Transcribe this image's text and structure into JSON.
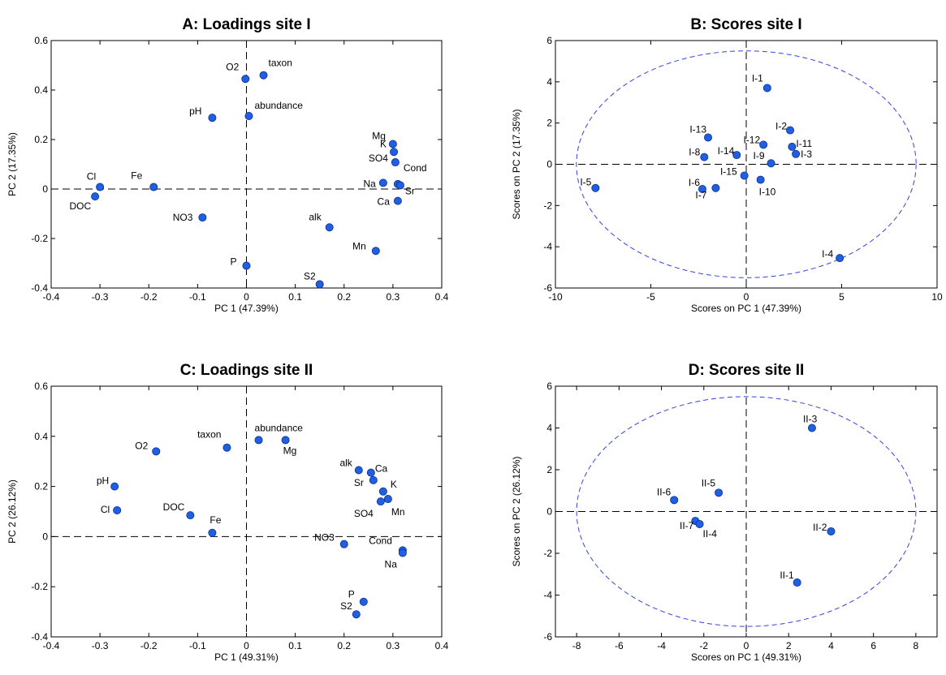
{
  "chart_data": [
    {
      "type": "scatter",
      "title": "A: Loadings site I",
      "xlabel": "PC 1 (47.39%)",
      "ylabel": "PC 2 (17.35%)",
      "xlim": [
        -0.4,
        0.4
      ],
      "ylim": [
        -0.4,
        0.6
      ],
      "xticks": [
        -0.4,
        -0.3,
        -0.2,
        -0.1,
        0,
        0.1,
        0.2,
        0.3,
        0.4
      ],
      "yticks": [
        -0.4,
        -0.2,
        0,
        0.2,
        0.4,
        0.6
      ],
      "points": [
        {
          "label": "O2",
          "x": -0.002,
          "y": 0.445
        },
        {
          "label": "taxon",
          "x": 0.035,
          "y": 0.46
        },
        {
          "label": "abundance",
          "x": 0.005,
          "y": 0.295
        },
        {
          "label": "pH",
          "x": -0.07,
          "y": 0.288
        },
        {
          "label": "Mg",
          "x": 0.3,
          "y": 0.182
        },
        {
          "label": "K",
          "x": 0.302,
          "y": 0.15
        },
        {
          "label": "SO4",
          "x": 0.305,
          "y": 0.108
        },
        {
          "label": "Cond",
          "x": 0.31,
          "y": 0.02
        },
        {
          "label": "Na",
          "x": 0.28,
          "y": 0.025
        },
        {
          "label": "Sr",
          "x": 0.315,
          "y": 0.015
        },
        {
          "label": "Ca",
          "x": 0.31,
          "y": -0.048
        },
        {
          "label": "Cl",
          "x": -0.3,
          "y": 0.008
        },
        {
          "label": "Fe",
          "x": -0.19,
          "y": 0.008
        },
        {
          "label": "DOC",
          "x": -0.31,
          "y": -0.03
        },
        {
          "label": "NO3",
          "x": -0.09,
          "y": -0.115
        },
        {
          "label": "alk",
          "x": 0.17,
          "y": -0.155
        },
        {
          "label": "Mn",
          "x": 0.265,
          "y": -0.25
        },
        {
          "label": "P",
          "x": 0.0,
          "y": -0.31
        },
        {
          "label": "S2",
          "x": 0.15,
          "y": -0.385
        }
      ]
    },
    {
      "type": "scatter",
      "title": "B: Scores site I",
      "xlabel": "Scores on PC 1 (47.39%)",
      "ylabel": "Scores on PC 2 (17.35%)",
      "xlim": [
        -10,
        10
      ],
      "ylim": [
        -6,
        6
      ],
      "xticks": [
        -10,
        -5,
        0,
        5,
        10
      ],
      "yticks": [
        -6,
        -4,
        -2,
        0,
        2,
        4,
        6
      ],
      "ellipse": {
        "rx": 8.9,
        "ry": 5.5
      },
      "points": [
        {
          "label": "I-1",
          "x": 1.1,
          "y": 3.7
        },
        {
          "label": "I-2",
          "x": 2.3,
          "y": 1.65
        },
        {
          "label": "I-11",
          "x": 2.4,
          "y": 0.85
        },
        {
          "label": "I-3",
          "x": 2.6,
          "y": 0.5
        },
        {
          "label": "I-12",
          "x": 0.9,
          "y": 0.95
        },
        {
          "label": "I-13",
          "x": -2.0,
          "y": 1.3
        },
        {
          "label": "I-14",
          "x": -0.5,
          "y": 0.45
        },
        {
          "label": "I-8",
          "x": -2.2,
          "y": 0.35
        },
        {
          "label": "I-9",
          "x": 1.3,
          "y": 0.05
        },
        {
          "label": "I-15",
          "x": -0.1,
          "y": -0.55
        },
        {
          "label": "I-10",
          "x": 0.75,
          "y": -0.75
        },
        {
          "label": "I-6",
          "x": -2.3,
          "y": -1.2
        },
        {
          "label": "I-7",
          "x": -1.6,
          "y": -1.15
        },
        {
          "label": "I-5",
          "x": -7.9,
          "y": -1.15
        },
        {
          "label": "I-4",
          "x": 4.9,
          "y": -4.55
        }
      ]
    },
    {
      "type": "scatter",
      "title": "C: Loadings site II",
      "xlabel": "PC 1 (49.31%)",
      "ylabel": "PC 2 (26.12%)",
      "xlim": [
        -0.4,
        0.4
      ],
      "ylim": [
        -0.4,
        0.6
      ],
      "xticks": [
        -0.4,
        -0.3,
        -0.2,
        -0.1,
        0,
        0.1,
        0.2,
        0.3,
        0.4
      ],
      "yticks": [
        -0.4,
        -0.2,
        0,
        0.2,
        0.4,
        0.6
      ],
      "points": [
        {
          "label": "abundance",
          "x": 0.025,
          "y": 0.385
        },
        {
          "label": "Mg",
          "x": 0.08,
          "y": 0.385
        },
        {
          "label": "taxon",
          "x": -0.04,
          "y": 0.355
        },
        {
          "label": "O2",
          "x": -0.185,
          "y": 0.34
        },
        {
          "label": "alk",
          "x": 0.23,
          "y": 0.265
        },
        {
          "label": "Ca",
          "x": 0.255,
          "y": 0.255
        },
        {
          "label": "pH",
          "x": -0.27,
          "y": 0.2
        },
        {
          "label": "Sr",
          "x": 0.26,
          "y": 0.225
        },
        {
          "label": "K",
          "x": 0.28,
          "y": 0.18
        },
        {
          "label": "Cl",
          "x": -0.265,
          "y": 0.105
        },
        {
          "label": "DOC",
          "x": -0.115,
          "y": 0.085
        },
        {
          "label": "SO4",
          "x": 0.275,
          "y": 0.14
        },
        {
          "label": "Mn",
          "x": 0.29,
          "y": 0.15
        },
        {
          "label": "Fe",
          "x": -0.07,
          "y": 0.015
        },
        {
          "label": "NO3",
          "x": 0.2,
          "y": -0.03
        },
        {
          "label": "Cond",
          "x": 0.32,
          "y": -0.055
        },
        {
          "label": "Na",
          "x": 0.32,
          "y": -0.065
        },
        {
          "label": "P",
          "x": 0.24,
          "y": -0.26
        },
        {
          "label": "S2",
          "x": 0.225,
          "y": -0.31
        }
      ]
    },
    {
      "type": "scatter",
      "title": "D: Scores site II",
      "xlabel": "Scores on PC 1 (49.31%)",
      "ylabel": "Scores on PC 2 (26.12%)",
      "xlim": [
        -9,
        9
      ],
      "ylim": [
        -6,
        6
      ],
      "xticks": [
        -8,
        -6,
        -4,
        -2,
        0,
        2,
        4,
        6,
        8
      ],
      "yticks": [
        -6,
        -4,
        -2,
        0,
        2,
        4,
        6
      ],
      "ellipse": {
        "rx": 8.0,
        "ry": 5.5
      },
      "points": [
        {
          "label": "II-3",
          "x": 3.1,
          "y": 4.0
        },
        {
          "label": "II-5",
          "x": -1.3,
          "y": 0.9
        },
        {
          "label": "II-6",
          "x": -3.4,
          "y": 0.55
        },
        {
          "label": "II-7",
          "x": -2.4,
          "y": -0.45
        },
        {
          "label": "II-4",
          "x": -2.2,
          "y": -0.6
        },
        {
          "label": "II-2",
          "x": 4.0,
          "y": -0.95
        },
        {
          "label": "II-1",
          "x": 2.4,
          "y": -3.4
        }
      ]
    }
  ]
}
